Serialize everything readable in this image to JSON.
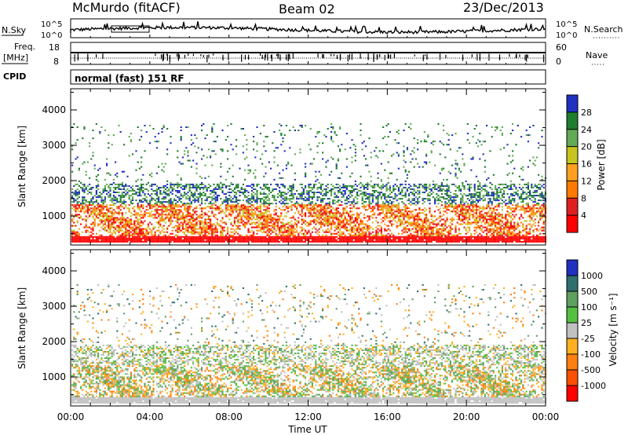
{
  "header": {
    "station": "McMurdo (fitACF)",
    "beam": "Beam 02",
    "date": "23/Dec/2013"
  },
  "top_panels": {
    "nsky_label": "N.Sky",
    "nsky_ticks": [
      "10^5",
      "10^0"
    ],
    "nsearch_label": "N.Search",
    "nsearch_ticks": [
      "10^5",
      "10^0"
    ],
    "freq_label": "Freq.",
    "freq_unit": "[MHz]",
    "freq_ticks": [
      "18",
      "8"
    ],
    "nave_label": "Nave",
    "nave_ticks": [
      "60",
      "0"
    ],
    "cpid_label": "CPID",
    "cpid_text": "normal (fast) 151 RF"
  },
  "colors": {
    "power": [
      "#2030c0",
      "#1f7d2e",
      "#62aa55",
      "#c6c41e",
      "#ffa020",
      "#ff7a00",
      "#e02020",
      "#ff0000"
    ],
    "velocity": [
      "#2030c0",
      "#2f6f6f",
      "#5f9f5f",
      "#55c040",
      "#c0c0c0",
      "#ffb020",
      "#ff8010",
      "#ff5000",
      "#ff0000"
    ]
  },
  "chart_data": [
    {
      "type": "heatmap",
      "title": "",
      "ylabel": "Slant Range [km]",
      "xlabel": "",
      "x_ticks": [
        "00:00",
        "04:00",
        "08:00",
        "12:00",
        "16:00",
        "20:00",
        "00:00"
      ],
      "y_ticks": [
        "1000",
        "2000",
        "3000",
        "4000"
      ],
      "ylim": [
        180,
        4600
      ],
      "colorbar_label": "Power [dB]",
      "colorbar_ticks": [
        "4",
        "8",
        "12",
        "16",
        "20",
        "24",
        "28"
      ]
    },
    {
      "type": "heatmap",
      "title": "",
      "ylabel": "Slant Range [km]",
      "xlabel": "Time UT",
      "x_ticks": [
        "00:00",
        "04:00",
        "08:00",
        "12:00",
        "16:00",
        "20:00",
        "00:00"
      ],
      "y_ticks": [
        "1000",
        "2000",
        "3000",
        "4000"
      ],
      "ylim": [
        180,
        4600
      ],
      "colorbar_label": "Velocity [m s⁻¹]",
      "colorbar_ticks": [
        "1000",
        "500",
        "100",
        "25",
        "-25",
        "-100",
        "-500",
        "-1000"
      ]
    }
  ]
}
